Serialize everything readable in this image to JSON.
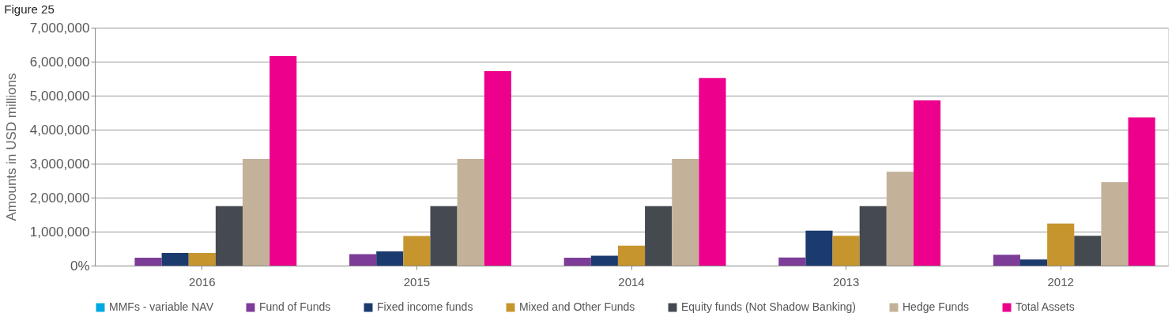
{
  "chart_data": {
    "type": "bar",
    "title": "Figure 25",
    "ylabel": "Amounts in USD millions",
    "categories": [
      "2016",
      "2015",
      "2014",
      "2013",
      "2012"
    ],
    "series": [
      {
        "name": "MMFs - variable NAV",
        "color": "#00a9e0",
        "values": [
          null,
          null,
          null,
          null,
          null
        ]
      },
      {
        "name": "Fund of Funds",
        "color": "#7d3c98",
        "values": [
          230000,
          340000,
          230000,
          240000,
          320000
        ]
      },
      {
        "name": "Fixed income funds",
        "color": "#1b3a6e",
        "values": [
          370000,
          420000,
          290000,
          1030000,
          180000
        ]
      },
      {
        "name": "Mixed and Other Funds",
        "color": "#c6952d",
        "values": [
          370000,
          870000,
          590000,
          880000,
          1240000
        ]
      },
      {
        "name": "Equity funds (Not Shadow Banking)",
        "color": "#454950",
        "values": [
          1750000,
          1750000,
          1750000,
          1750000,
          880000
        ]
      },
      {
        "name": "Hedge Funds",
        "color": "#c3b299",
        "values": [
          3140000,
          3140000,
          3140000,
          2760000,
          2460000
        ]
      },
      {
        "name": "Total Assets",
        "color": "#ec008c",
        "values": [
          6160000,
          5720000,
          5520000,
          4860000,
          4360000
        ]
      }
    ],
    "ylim": [
      0,
      7000000
    ],
    "yticks": [
      {
        "value": 0,
        "label": "0%"
      },
      {
        "value": 1000000,
        "label": "1,000,000"
      },
      {
        "value": 2000000,
        "label": "2,000,000"
      },
      {
        "value": 3000000,
        "label": "3,000,000"
      },
      {
        "value": 4000000,
        "label": "4,000,000"
      },
      {
        "value": 5000000,
        "label": "5,000,000"
      },
      {
        "value": 6000000,
        "label": "6,000,000"
      },
      {
        "value": 7000000,
        "label": "7,000,000"
      }
    ],
    "grid": "y",
    "legend": "bottom"
  }
}
